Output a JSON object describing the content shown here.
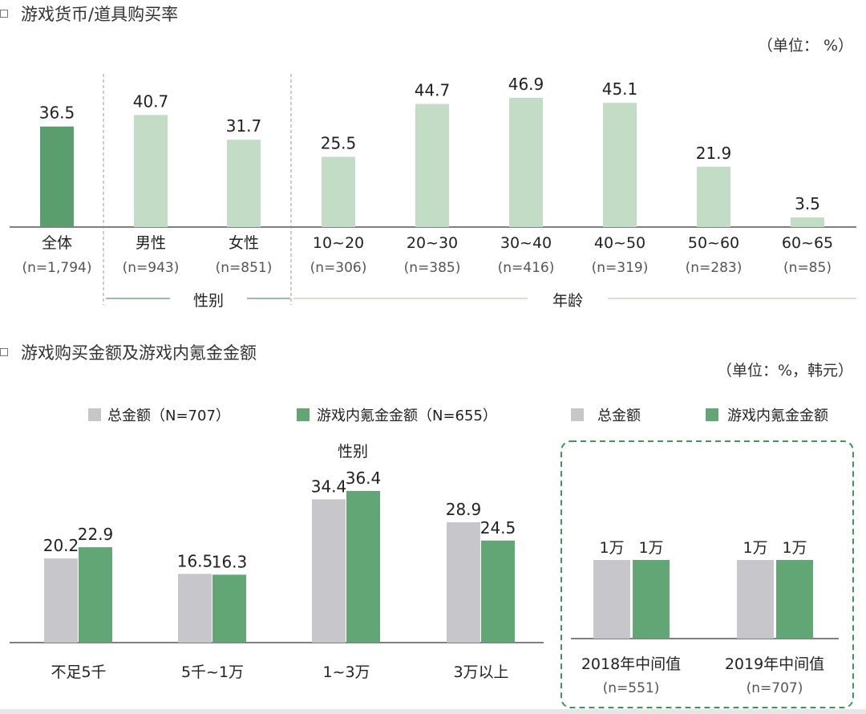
{
  "section1": {
    "title": "游戏货币/道具购买率",
    "unit": "（单位： %）"
  },
  "section2": {
    "title": "游戏购买金额及游戏内氪金金额",
    "unit": "（单位：%，韩元）"
  },
  "colors": {
    "dark_green": "#5a9e6e",
    "light_green": "#c3dcc6",
    "gray": "#c6c6cb",
    "green": "#62a676",
    "line_green": "#8fc49c",
    "dashed_box": "#3c9a54"
  },
  "chart_data": [
    {
      "type": "bar",
      "categories": [
        "全体",
        "男性",
        "女性",
        "10~20",
        "20~30",
        "30~40",
        "40~50",
        "50~60",
        "60~65"
      ],
      "sample_sizes": [
        "(n=1,794)",
        "(n=943)",
        "(n=851)",
        "(n=306)",
        "(n=385)",
        "(n=416)",
        "(n=319)",
        "(n=283)",
        "(n=85)"
      ],
      "values": [
        36.5,
        40.7,
        31.7,
        25.5,
        44.7,
        46.9,
        45.1,
        21.9,
        3.5
      ],
      "value_labels": [
        "36.5",
        "40.7",
        "31.7",
        "25.5",
        "44.7",
        "46.9",
        "45.1",
        "21.9",
        "3.5"
      ],
      "groups": [
        {
          "label": "性别",
          "categories": [
            "男性",
            "女性"
          ]
        },
        {
          "label": "年龄",
          "categories": [
            "10~20",
            "20~30",
            "30~40",
            "40~50",
            "50~60",
            "60~65"
          ]
        }
      ],
      "ylim": [
        0,
        50
      ],
      "grid": false
    },
    {
      "type": "bar",
      "categories": [
        "不足5千",
        "5千~1万",
        "1~3万",
        "3万以上"
      ],
      "series": [
        {
          "name": "总金额（N=707）",
          "values": [
            20.2,
            16.5,
            34.4,
            28.9
          ],
          "labels": [
            "20.2",
            "16.5",
            "34.4",
            "28.9"
          ]
        },
        {
          "name": "游戏内氪金金额（N=655）",
          "values": [
            22.9,
            16.3,
            36.4,
            24.5
          ],
          "labels": [
            "22.9",
            "16.3",
            "36.4",
            "24.5"
          ]
        }
      ],
      "annotation": "性别",
      "ylim": [
        0,
        45
      ],
      "legend": "top",
      "grid": false
    },
    {
      "type": "bar",
      "categories": [
        "2018年中间值",
        "2019年中间值"
      ],
      "sample_sizes": [
        "(n=551)",
        "(n=707)"
      ],
      "series": [
        {
          "name": "总金额",
          "values": [
            10000,
            10000
          ],
          "labels": [
            "1万",
            "1万"
          ]
        },
        {
          "name": "游戏内氪金金额",
          "values": [
            10000,
            10000
          ],
          "labels": [
            "1万",
            "1万"
          ]
        }
      ],
      "ylim": [
        0,
        18000
      ],
      "legend": "top",
      "grid": false
    }
  ]
}
